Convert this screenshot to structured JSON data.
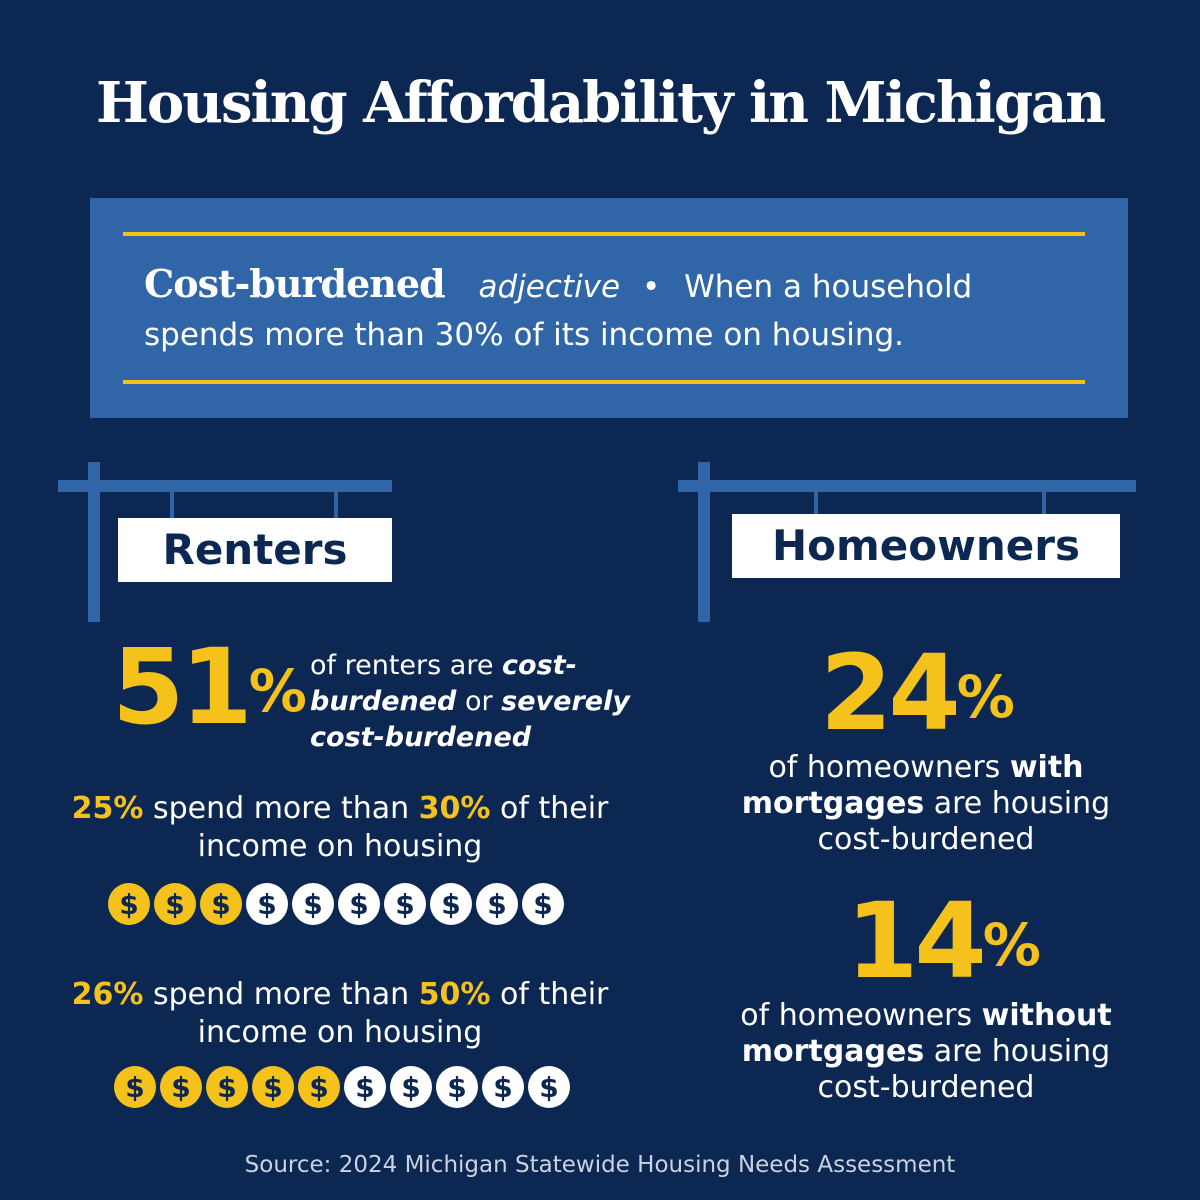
{
  "title": "Housing Affordability in Michigan",
  "definition": {
    "term": "Cost-burdened",
    "part_of_speech": "adjective",
    "bullet": "•",
    "text": "When a household spends more than 30% of its income on housing."
  },
  "renters": {
    "sign_label": "Renters",
    "headline_value": "51",
    "headline_pct": "%",
    "headline_text_1": "of renters are ",
    "headline_text_2": "cost-burdened",
    "headline_text_3": " or ",
    "headline_text_4": "severely cost-burdened",
    "stat1_value": "25%",
    "stat1_text_a": " spend more than ",
    "stat1_threshold": "30%",
    "stat1_text_b": " of their income on housing",
    "stat1_coins_filled": 3,
    "stat1_coins_total": 10,
    "stat2_value": "26%",
    "stat2_text_a": " spend more than ",
    "stat2_threshold": "50%",
    "stat2_text_b": " of their income on housing",
    "stat2_coins_filled": 5,
    "stat2_coins_total": 10,
    "coin_symbol": "$"
  },
  "homeowners": {
    "sign_label": "Homeowners",
    "stat1_value": "24",
    "stat1_pct": "%",
    "stat1_text_a": "of homeowners ",
    "stat1_text_b": "with mortgages",
    "stat1_text_c": " are housing cost-burdened",
    "stat2_value": "14",
    "stat2_pct": "%",
    "stat2_text_a": "of homeowners ",
    "stat2_text_b": "without mortgages",
    "stat2_text_c": " are housing cost-burdened"
  },
  "source": "Source: 2024 Michigan Statewide Housing Needs Assessment",
  "colors": {
    "background": "#0c2752",
    "accent_blue": "#3065a8",
    "accent_yellow": "#f4c21a",
    "text_white": "#ffffff"
  }
}
